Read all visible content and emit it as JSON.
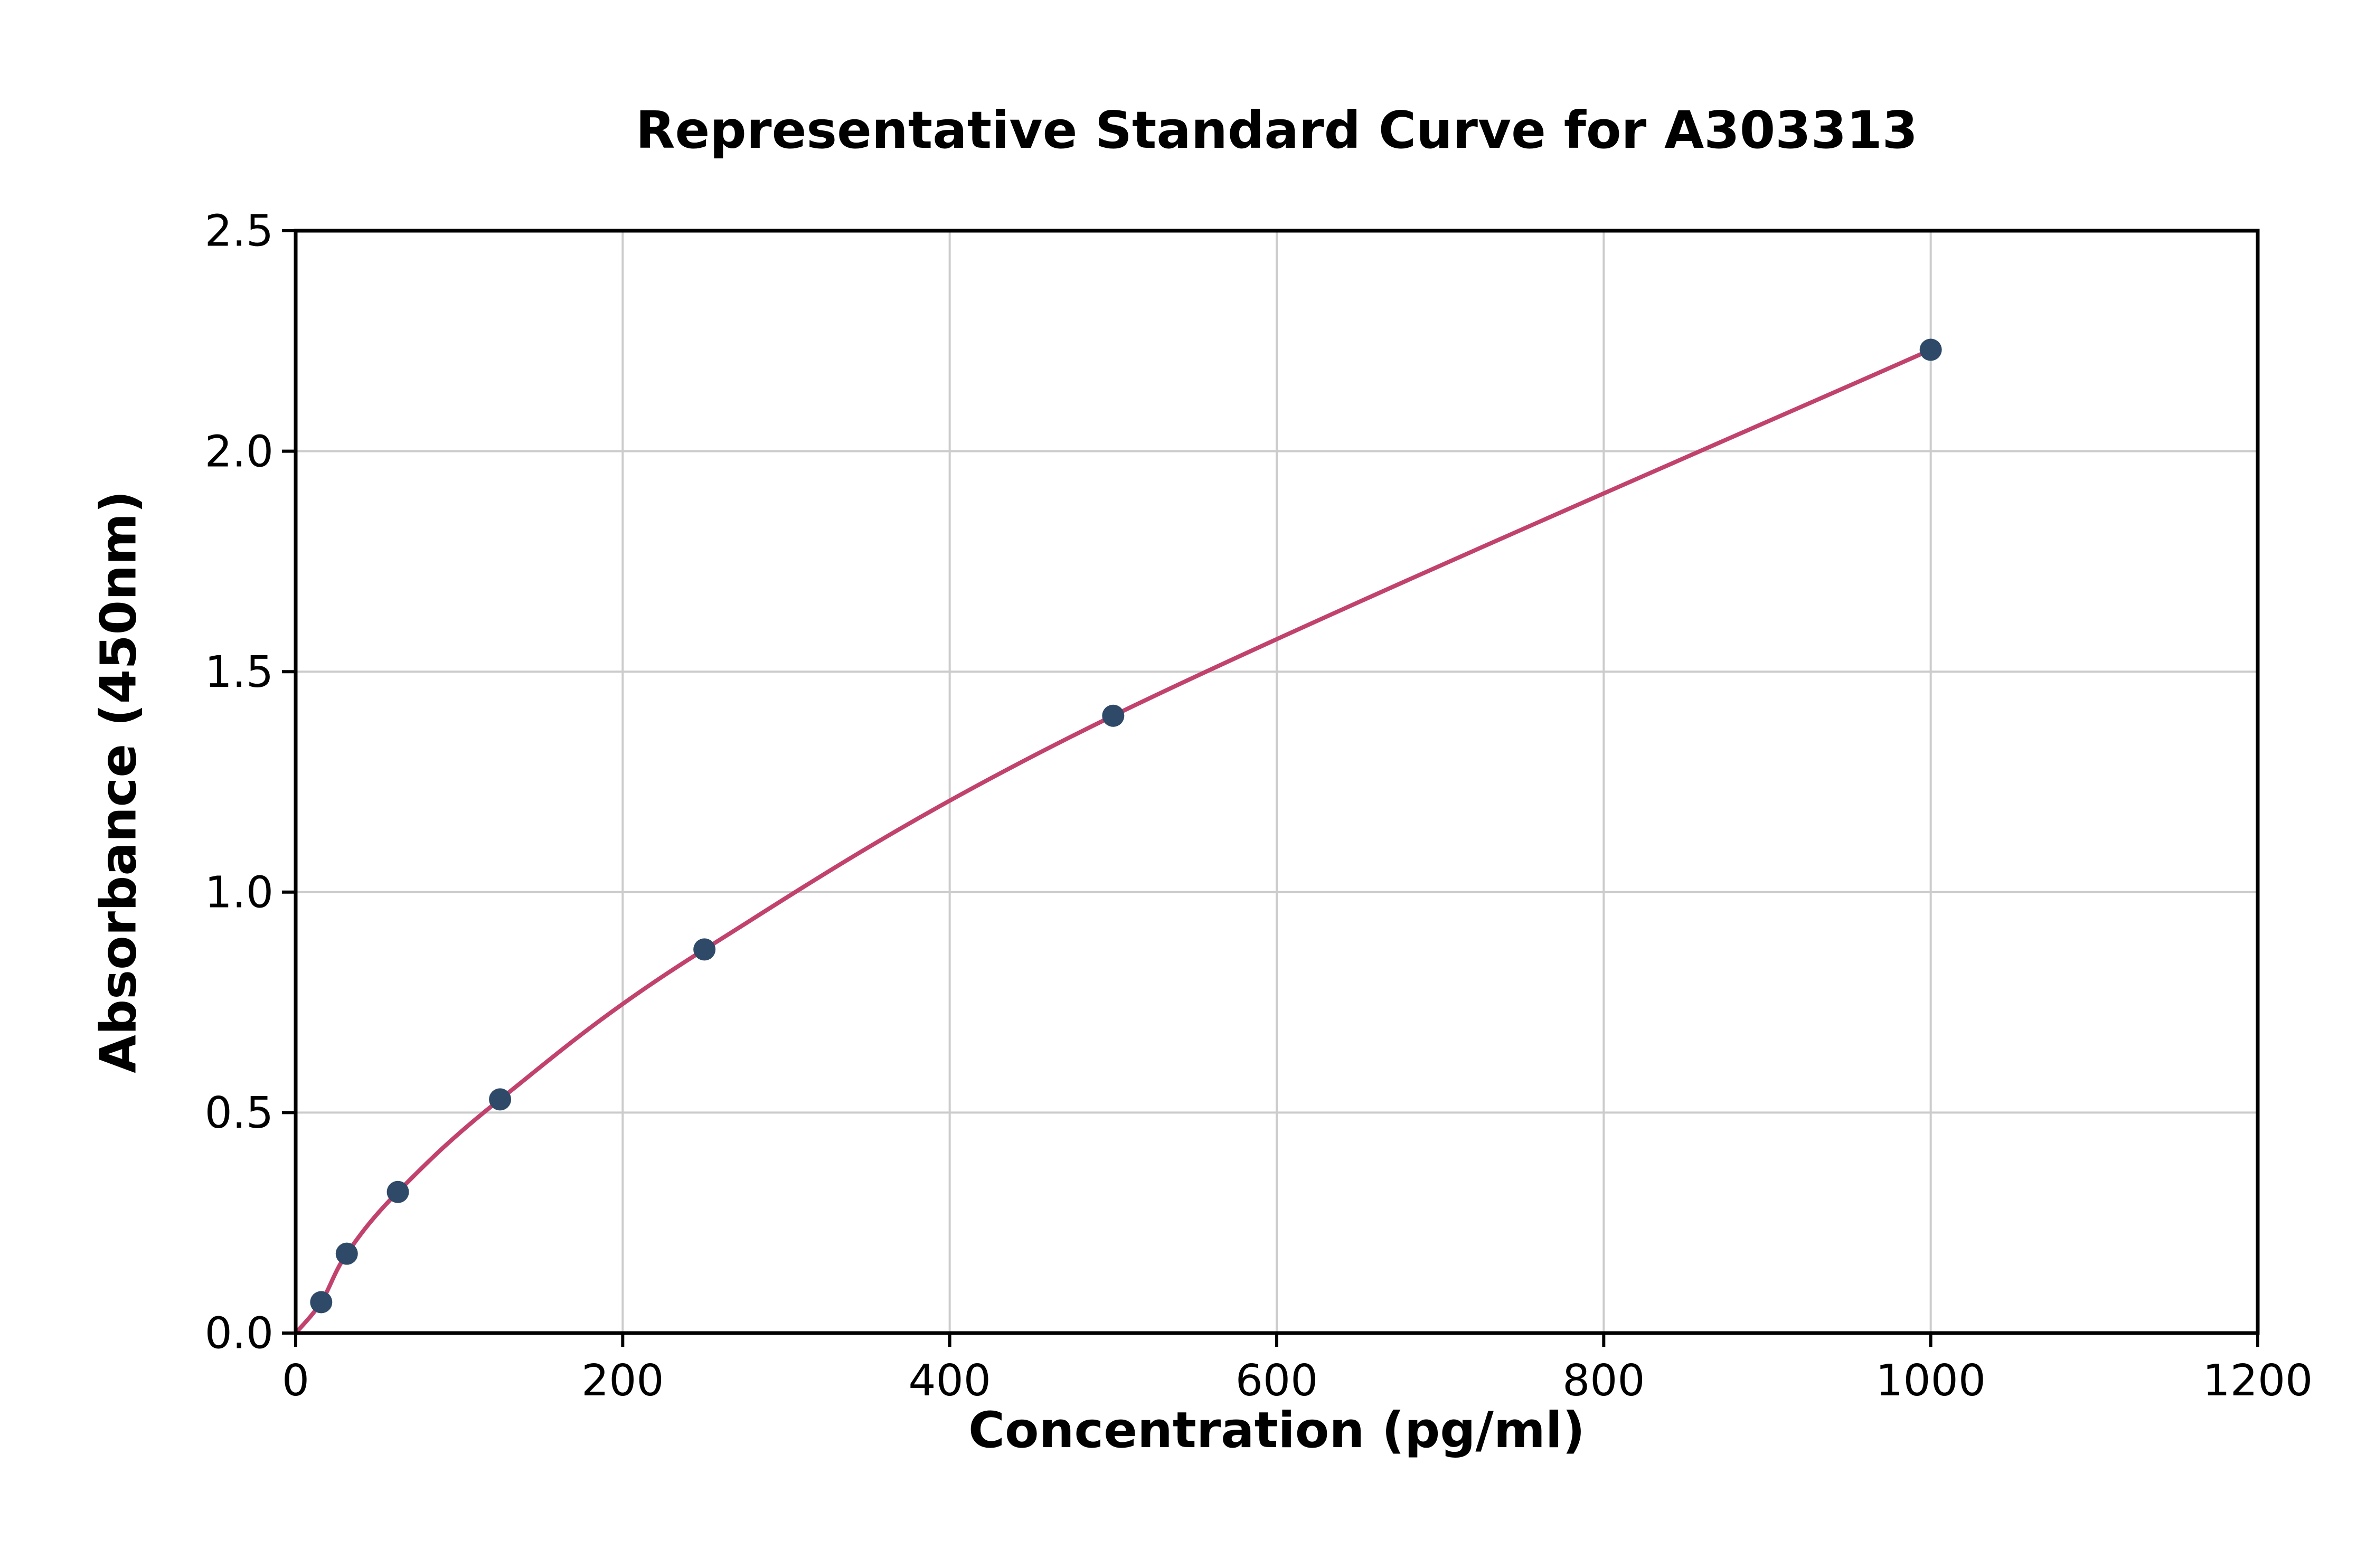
{
  "chart_data": {
    "type": "scatter",
    "title": "Representative Standard Curve for A303313",
    "xlabel": "Concentration (pg/ml)",
    "ylabel": "Absorbance (450nm)",
    "xlim": [
      0,
      1200
    ],
    "ylim": [
      0,
      2.5
    ],
    "x_ticks": [
      0,
      200,
      400,
      600,
      800,
      1000,
      1200
    ],
    "x_tick_labels": [
      "0",
      "200",
      "400",
      "600",
      "800",
      "1000",
      "1200"
    ],
    "y_ticks": [
      0.0,
      0.5,
      1.0,
      1.5,
      2.0,
      2.5
    ],
    "y_tick_labels": [
      "0.0",
      "0.5",
      "1.0",
      "1.5",
      "2.0",
      "2.5"
    ],
    "grid": true,
    "grid_color": "#cccccc",
    "axis_color": "#000000",
    "background_color": "#ffffff",
    "legend": "none",
    "series": [
      {
        "name": "fitted-standard-curve",
        "type": "line",
        "color": "#c2426e",
        "x": [
          0,
          15.6,
          31.25,
          62.5,
          125,
          250,
          500,
          1000
        ],
        "y": [
          0.0,
          0.07,
          0.18,
          0.32,
          0.53,
          0.87,
          1.4,
          2.23
        ]
      },
      {
        "name": "standard-points",
        "type": "scatter",
        "color": "#2e4a68",
        "x": [
          15.6,
          31.25,
          62.5,
          125,
          250,
          500,
          1000
        ],
        "y": [
          0.07,
          0.18,
          0.32,
          0.53,
          0.87,
          1.4,
          2.23
        ]
      }
    ]
  }
}
